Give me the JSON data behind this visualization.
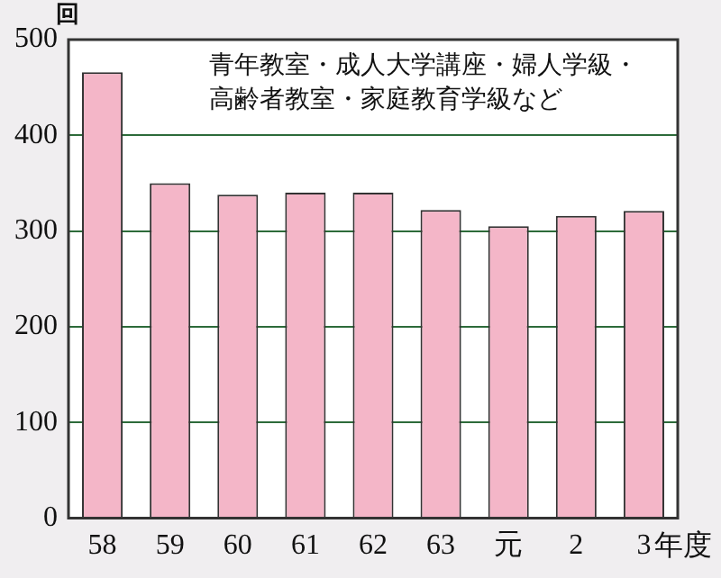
{
  "chart_data": {
    "type": "bar",
    "ylabel": "回",
    "xlabel": "年度",
    "categories": [
      "58",
      "59",
      "60",
      "61",
      "62",
      "63",
      "元",
      "2",
      "3"
    ],
    "values": [
      466,
      350,
      338,
      340,
      340,
      322,
      305,
      316,
      321
    ],
    "color": "#f4b6c8",
    "ylim": [
      0,
      500
    ],
    "yticks": [
      0,
      100,
      200,
      300,
      400,
      500
    ],
    "grid": "y",
    "legend": false,
    "annotations": [
      "青年教室・成人大学講座・婦人学級・",
      "高齢者教室・家庭教育学級など"
    ]
  }
}
